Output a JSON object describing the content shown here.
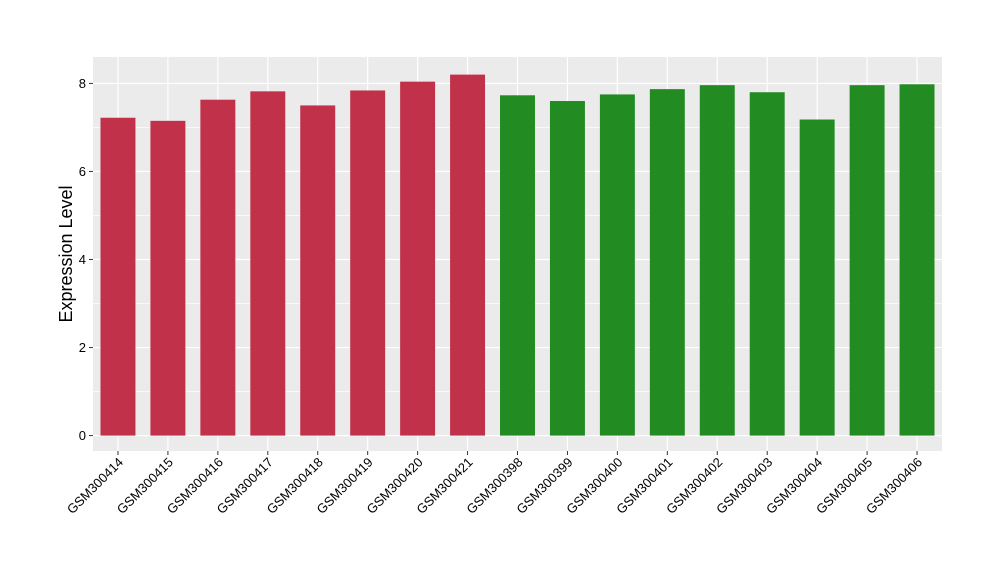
{
  "chart_data": {
    "type": "bar",
    "title": "",
    "xlabel": "",
    "ylabel": "Expression Level",
    "ylim": [
      -0.35,
      8.6
    ],
    "y_ticks": [
      "0",
      "2",
      "4",
      "6",
      "8"
    ],
    "y_tick_values": [
      0,
      2,
      4,
      6,
      8
    ],
    "grid": true,
    "legend": "none",
    "categories": [
      "GSM300414",
      "GSM300415",
      "GSM300416",
      "GSM300417",
      "GSM300418",
      "GSM300419",
      "GSM300420",
      "GSM300421",
      "GSM300398",
      "GSM300399",
      "GSM300400",
      "GSM300401",
      "GSM300402",
      "GSM300403",
      "GSM300404",
      "GSM300405",
      "GSM300406"
    ],
    "values": [
      7.22,
      7.15,
      7.63,
      7.82,
      7.5,
      7.84,
      8.04,
      8.2,
      7.73,
      7.6,
      7.75,
      7.87,
      7.96,
      7.8,
      7.18,
      7.96,
      7.98
    ],
    "bar_colors": [
      "#c1314a",
      "#c1314a",
      "#c1314a",
      "#c1314a",
      "#c1314a",
      "#c1314a",
      "#c1314a",
      "#c1314a",
      "#228b22",
      "#228b22",
      "#228b22",
      "#228b22",
      "#228b22",
      "#228b22",
      "#228b22",
      "#228b22",
      "#228b22"
    ],
    "panel_background": "#ebebeb",
    "grid_color": "#ffffff"
  }
}
